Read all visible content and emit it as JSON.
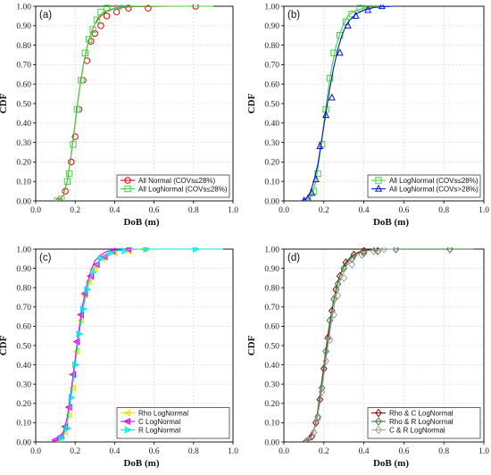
{
  "chart_data": [
    {
      "type": "line",
      "panel_label": "(a)",
      "xlabel": "DoB (m)",
      "ylabel": "CDF",
      "xlim": [
        0.0,
        1.0
      ],
      "ylim": [
        0.0,
        1.0
      ],
      "xticks": [
        "0.0",
        "0.2",
        "0.4",
        "0.6",
        "0.8",
        "1.0"
      ],
      "yticks": [
        "0.00",
        "0.10",
        "0.20",
        "0.30",
        "0.40",
        "0.50",
        "0.60",
        "0.70",
        "0.80",
        "0.90",
        "1.00"
      ],
      "grid": true,
      "legend": "bottom-right",
      "series": [
        {
          "name": "All Normal (COVs≤28%)",
          "color": "#e00000",
          "marker": "circle",
          "x": [
            0.12,
            0.14,
            0.16,
            0.18,
            0.2,
            0.22,
            0.24,
            0.26,
            0.28,
            0.3,
            0.33,
            0.36,
            0.4,
            0.45,
            0.5,
            0.6,
            0.7,
            0.8,
            0.9
          ],
          "y": [
            0.005,
            0.03,
            0.1,
            0.24,
            0.4,
            0.56,
            0.69,
            0.79,
            0.86,
            0.91,
            0.95,
            0.975,
            0.988,
            0.995,
            0.998,
            0.999,
            1.0,
            1.0,
            1.0
          ],
          "mx": [
            0.12,
            0.15,
            0.18,
            0.2,
            0.22,
            0.24,
            0.26,
            0.28,
            0.3,
            0.33,
            0.36,
            0.41,
            0.47,
            0.57,
            0.81
          ],
          "my": [
            0.0,
            0.05,
            0.2,
            0.33,
            0.47,
            0.62,
            0.72,
            0.82,
            0.86,
            0.9,
            0.95,
            0.97,
            0.99,
            0.99,
            1.0
          ]
        },
        {
          "name": "All LogNormal (COVs≤28%)",
          "color": "#46d046",
          "marker": "square",
          "x": [
            0.1,
            0.12,
            0.14,
            0.16,
            0.18,
            0.2,
            0.22,
            0.24,
            0.26,
            0.28,
            0.3,
            0.32,
            0.35,
            0.4,
            0.45,
            0.5,
            0.6,
            0.7,
            0.8,
            0.9
          ],
          "y": [
            0.0,
            0.005,
            0.03,
            0.1,
            0.24,
            0.4,
            0.56,
            0.69,
            0.79,
            0.86,
            0.91,
            0.95,
            0.975,
            0.99,
            0.997,
            0.999,
            1.0,
            1.0,
            1.0,
            1.0
          ],
          "mx": [
            0.11,
            0.13,
            0.16,
            0.17,
            0.19,
            0.21,
            0.23,
            0.25,
            0.27,
            0.29,
            0.31,
            0.33,
            0.36,
            0.39,
            0.42
          ],
          "my": [
            0.0,
            0.01,
            0.1,
            0.14,
            0.29,
            0.47,
            0.62,
            0.76,
            0.83,
            0.88,
            0.93,
            0.97,
            0.99,
            1.0,
            1.0
          ]
        }
      ]
    },
    {
      "type": "line",
      "panel_label": "(b)",
      "xlabel": "DoB (m)",
      "ylabel": "CDF",
      "xlim": [
        0.0,
        1.0
      ],
      "ylim": [
        0.0,
        1.0
      ],
      "xticks": [
        "0.0",
        "0.2",
        "0.4",
        "0.6",
        "0.8",
        "1.0"
      ],
      "yticks": [
        "0.00",
        "0.10",
        "0.20",
        "0.30",
        "0.40",
        "0.50",
        "0.60",
        "0.70",
        "0.80",
        "0.90",
        "1.00"
      ],
      "grid": true,
      "legend": "bottom-right",
      "series": [
        {
          "name": "All LogNormal (COVs≤28%)",
          "color": "#46d046",
          "marker": "square",
          "x": [
            0.1,
            0.12,
            0.14,
            0.16,
            0.18,
            0.2,
            0.22,
            0.24,
            0.26,
            0.28,
            0.3,
            0.32,
            0.35,
            0.4,
            0.45,
            0.5,
            0.55
          ],
          "y": [
            0.0,
            0.005,
            0.03,
            0.1,
            0.24,
            0.4,
            0.56,
            0.69,
            0.79,
            0.86,
            0.91,
            0.95,
            0.975,
            0.99,
            0.997,
            0.999,
            1.0
          ],
          "mx": [
            0.12,
            0.15,
            0.17,
            0.19,
            0.21,
            0.23,
            0.25,
            0.28,
            0.31,
            0.34,
            0.38,
            0.42
          ],
          "my": [
            0.0,
            0.05,
            0.14,
            0.29,
            0.47,
            0.63,
            0.76,
            0.85,
            0.92,
            0.96,
            0.99,
            1.0
          ]
        },
        {
          "name": "All LogNormal (COVs>28%)",
          "color": "#0a14d2",
          "marker": "triangle",
          "x": [
            0.09,
            0.11,
            0.13,
            0.15,
            0.17,
            0.19,
            0.21,
            0.23,
            0.25,
            0.27,
            0.29,
            0.31,
            0.33,
            0.36,
            0.4,
            0.45,
            0.5,
            0.55
          ],
          "y": [
            0.0,
            0.01,
            0.04,
            0.1,
            0.19,
            0.32,
            0.45,
            0.58,
            0.69,
            0.78,
            0.85,
            0.9,
            0.93,
            0.96,
            0.98,
            0.993,
            0.998,
            1.0
          ],
          "mx": [
            0.1,
            0.12,
            0.14,
            0.16,
            0.18,
            0.21,
            0.24,
            0.28,
            0.32,
            0.36,
            0.42,
            0.49
          ],
          "my": [
            0.0,
            0.01,
            0.04,
            0.11,
            0.28,
            0.44,
            0.53,
            0.76,
            0.9,
            0.95,
            0.98,
            1.0
          ]
        }
      ]
    },
    {
      "type": "line",
      "panel_label": "(c)",
      "xlabel": "DoB (m)",
      "ylabel": "CDF",
      "xlim": [
        0.0,
        1.0
      ],
      "ylim": [
        0.0,
        1.0
      ],
      "xticks": [
        "0.0",
        "0.2",
        "0.4",
        "0.6",
        "0.8",
        "1.0"
      ],
      "yticks": [
        "0.00",
        "0.10",
        "0.20",
        "0.30",
        "0.40",
        "0.50",
        "0.60",
        "0.70",
        "0.80",
        "0.90",
        "1.00"
      ],
      "grid": true,
      "legend": "bottom-right",
      "series": [
        {
          "name": "Rho LogNormal",
          "color": "#f0e000",
          "marker": "triangle-left",
          "x": [
            0.1,
            0.12,
            0.14,
            0.16,
            0.18,
            0.2,
            0.22,
            0.24,
            0.26,
            0.28,
            0.3,
            0.33,
            0.36,
            0.4,
            0.45,
            0.5,
            0.55
          ],
          "y": [
            0.0,
            0.005,
            0.03,
            0.1,
            0.24,
            0.4,
            0.56,
            0.69,
            0.79,
            0.86,
            0.91,
            0.95,
            0.975,
            0.99,
            0.996,
            0.999,
            1.0
          ],
          "mx": [
            0.12,
            0.15,
            0.17,
            0.19,
            0.21,
            0.23,
            0.25,
            0.27,
            0.3,
            0.34,
            0.4,
            0.47,
            0.55
          ],
          "my": [
            0.01,
            0.05,
            0.14,
            0.28,
            0.47,
            0.63,
            0.76,
            0.83,
            0.9,
            0.95,
            0.98,
            0.99,
            1.0
          ]
        },
        {
          "name": "C LogNormal",
          "color": "#e000e0",
          "marker": "triangle-left",
          "x": [
            0.08,
            0.1,
            0.12,
            0.14,
            0.16,
            0.18,
            0.2,
            0.22,
            0.24,
            0.26,
            0.28,
            0.3,
            0.33,
            0.36,
            0.4,
            0.45,
            0.5
          ],
          "y": [
            0.0,
            0.005,
            0.02,
            0.05,
            0.13,
            0.27,
            0.43,
            0.59,
            0.72,
            0.82,
            0.89,
            0.94,
            0.97,
            0.988,
            0.996,
            0.999,
            1.0
          ],
          "mx": [
            0.1,
            0.13,
            0.15,
            0.17,
            0.19,
            0.21,
            0.23,
            0.25,
            0.28,
            0.31,
            0.35,
            0.39,
            0.47
          ],
          "my": [
            0.01,
            0.03,
            0.08,
            0.18,
            0.35,
            0.52,
            0.66,
            0.77,
            0.86,
            0.92,
            0.96,
            0.99,
            1.0
          ]
        },
        {
          "name": "R LogNormal",
          "color": "#00e8e8",
          "marker": "triangle-right",
          "x": [
            0.1,
            0.12,
            0.14,
            0.16,
            0.18,
            0.2,
            0.22,
            0.24,
            0.26,
            0.28,
            0.3,
            0.33,
            0.36,
            0.4,
            0.45,
            0.5,
            0.55,
            0.6,
            0.7,
            0.8,
            0.9,
            0.95
          ],
          "y": [
            0.0,
            0.005,
            0.03,
            0.1,
            0.24,
            0.4,
            0.56,
            0.69,
            0.79,
            0.86,
            0.91,
            0.95,
            0.975,
            0.99,
            0.996,
            0.999,
            1.0,
            1.0,
            1.0,
            1.0,
            1.0,
            1.0
          ],
          "mx": [
            0.13,
            0.16,
            0.18,
            0.2,
            0.22,
            0.24,
            0.26,
            0.29,
            0.33,
            0.38,
            0.45,
            0.56,
            0.81
          ],
          "my": [
            0.02,
            0.07,
            0.23,
            0.4,
            0.56,
            0.69,
            0.79,
            0.88,
            0.95,
            0.98,
            0.99,
            1.0,
            1.0
          ]
        }
      ]
    },
    {
      "type": "line",
      "panel_label": "(d)",
      "xlabel": "DoB (m)",
      "ylabel": "CDF",
      "xlim": [
        0.0,
        1.0
      ],
      "ylim": [
        0.0,
        1.0
      ],
      "xticks": [
        "0.0",
        "0.2",
        "0.4",
        "0.6",
        "0.8",
        "1.0"
      ],
      "yticks": [
        "0.00",
        "0.10",
        "0.20",
        "0.30",
        "0.40",
        "0.50",
        "0.60",
        "0.70",
        "0.80",
        "0.90",
        "1.00"
      ],
      "grid": true,
      "legend": "bottom-right",
      "series": [
        {
          "name": "Rho & C LogNormal",
          "color": "#8b0000",
          "marker": "diamond",
          "x": [
            0.09,
            0.11,
            0.13,
            0.15,
            0.17,
            0.19,
            0.21,
            0.23,
            0.25,
            0.27,
            0.29,
            0.31,
            0.34,
            0.37,
            0.4,
            0.45,
            0.5
          ],
          "y": [
            0.0,
            0.005,
            0.02,
            0.06,
            0.15,
            0.3,
            0.46,
            0.61,
            0.74,
            0.83,
            0.89,
            0.93,
            0.965,
            0.983,
            0.993,
            0.998,
            1.0
          ],
          "mx": [
            0.11,
            0.14,
            0.16,
            0.18,
            0.2,
            0.22,
            0.24,
            0.26,
            0.28,
            0.31,
            0.35,
            0.4,
            0.46
          ],
          "my": [
            0.0,
            0.03,
            0.1,
            0.22,
            0.38,
            0.54,
            0.68,
            0.79,
            0.86,
            0.93,
            0.97,
            0.99,
            1.0
          ]
        },
        {
          "name": "Rho & R LogNormal",
          "color": "#3a7a3a",
          "marker": "diamond",
          "x": [
            0.1,
            0.12,
            0.14,
            0.16,
            0.18,
            0.2,
            0.22,
            0.24,
            0.26,
            0.28,
            0.3,
            0.33,
            0.36,
            0.4,
            0.45,
            0.5,
            0.55,
            0.6,
            0.7,
            0.8,
            0.9,
            0.95
          ],
          "y": [
            0.0,
            0.005,
            0.03,
            0.1,
            0.24,
            0.4,
            0.56,
            0.69,
            0.79,
            0.86,
            0.91,
            0.95,
            0.975,
            0.99,
            0.996,
            0.999,
            1.0,
            1.0,
            1.0,
            1.0,
            1.0,
            1.0
          ],
          "mx": [
            0.12,
            0.15,
            0.17,
            0.19,
            0.21,
            0.23,
            0.25,
            0.27,
            0.3,
            0.34,
            0.4,
            0.47,
            0.56,
            0.83
          ],
          "my": [
            0.0,
            0.05,
            0.13,
            0.28,
            0.47,
            0.63,
            0.74,
            0.82,
            0.9,
            0.95,
            0.98,
            0.99,
            1.0,
            1.0
          ]
        },
        {
          "name": "C & R LogNormal",
          "color": "#a0a0a0",
          "marker": "diamond",
          "x": [
            0.1,
            0.12,
            0.14,
            0.16,
            0.18,
            0.2,
            0.22,
            0.24,
            0.26,
            0.28,
            0.3,
            0.33,
            0.36,
            0.4,
            0.45,
            0.5,
            0.55
          ],
          "y": [
            0.0,
            0.01,
            0.03,
            0.09,
            0.2,
            0.35,
            0.5,
            0.64,
            0.75,
            0.83,
            0.89,
            0.94,
            0.97,
            0.987,
            0.996,
            0.999,
            1.0
          ],
          "mx": [
            0.12,
            0.15,
            0.17,
            0.19,
            0.21,
            0.23,
            0.25,
            0.27,
            0.3,
            0.34,
            0.39,
            0.45,
            0.5
          ],
          "my": [
            0.01,
            0.05,
            0.12,
            0.26,
            0.42,
            0.53,
            0.66,
            0.76,
            0.85,
            0.92,
            0.97,
            0.99,
            1.0
          ]
        }
      ]
    }
  ]
}
